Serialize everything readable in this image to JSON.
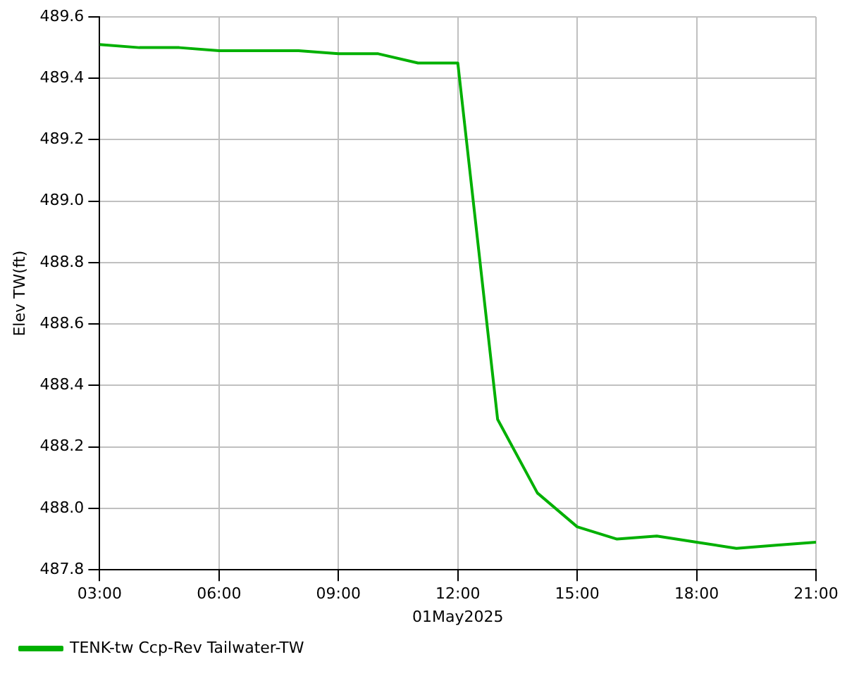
{
  "chart_data": {
    "type": "line",
    "xlabel": "01May2025",
    "ylabel": "Elev TW(ft)",
    "x": [
      3,
      4,
      5,
      6,
      7,
      8,
      9,
      10,
      11,
      12,
      13,
      14,
      15,
      16,
      17,
      18,
      19,
      20,
      21
    ],
    "series": [
      {
        "name": "TENK-tw Ccp-Rev Tailwater-TW",
        "color": "#00b000",
        "values": [
          489.51,
          489.5,
          489.5,
          489.49,
          489.49,
          489.49,
          489.48,
          489.48,
          489.45,
          489.45,
          488.29,
          488.05,
          487.94,
          487.9,
          487.91,
          487.89,
          487.87,
          487.88,
          487.89
        ]
      }
    ],
    "xlim": [
      3,
      21
    ],
    "xticks": [
      {
        "value": 3,
        "label": "03:00"
      },
      {
        "value": 6,
        "label": "06:00"
      },
      {
        "value": 9,
        "label": "09:00"
      },
      {
        "value": 12,
        "label": "12:00"
      },
      {
        "value": 15,
        "label": "15:00"
      },
      {
        "value": 18,
        "label": "18:00"
      },
      {
        "value": 21,
        "label": "21:00"
      }
    ],
    "ylim": [
      487.8,
      489.6
    ],
    "yticks": [
      487.8,
      {
        "value": 488,
        "label": "488.0"
      },
      488.2,
      488.4,
      488.6,
      488.8,
      {
        "value": 489,
        "label": "489.0"
      },
      489.2,
      489.4,
      489.6
    ],
    "grid": true,
    "legend": "bottom left",
    "marker": "none",
    "line_style": "solid"
  }
}
